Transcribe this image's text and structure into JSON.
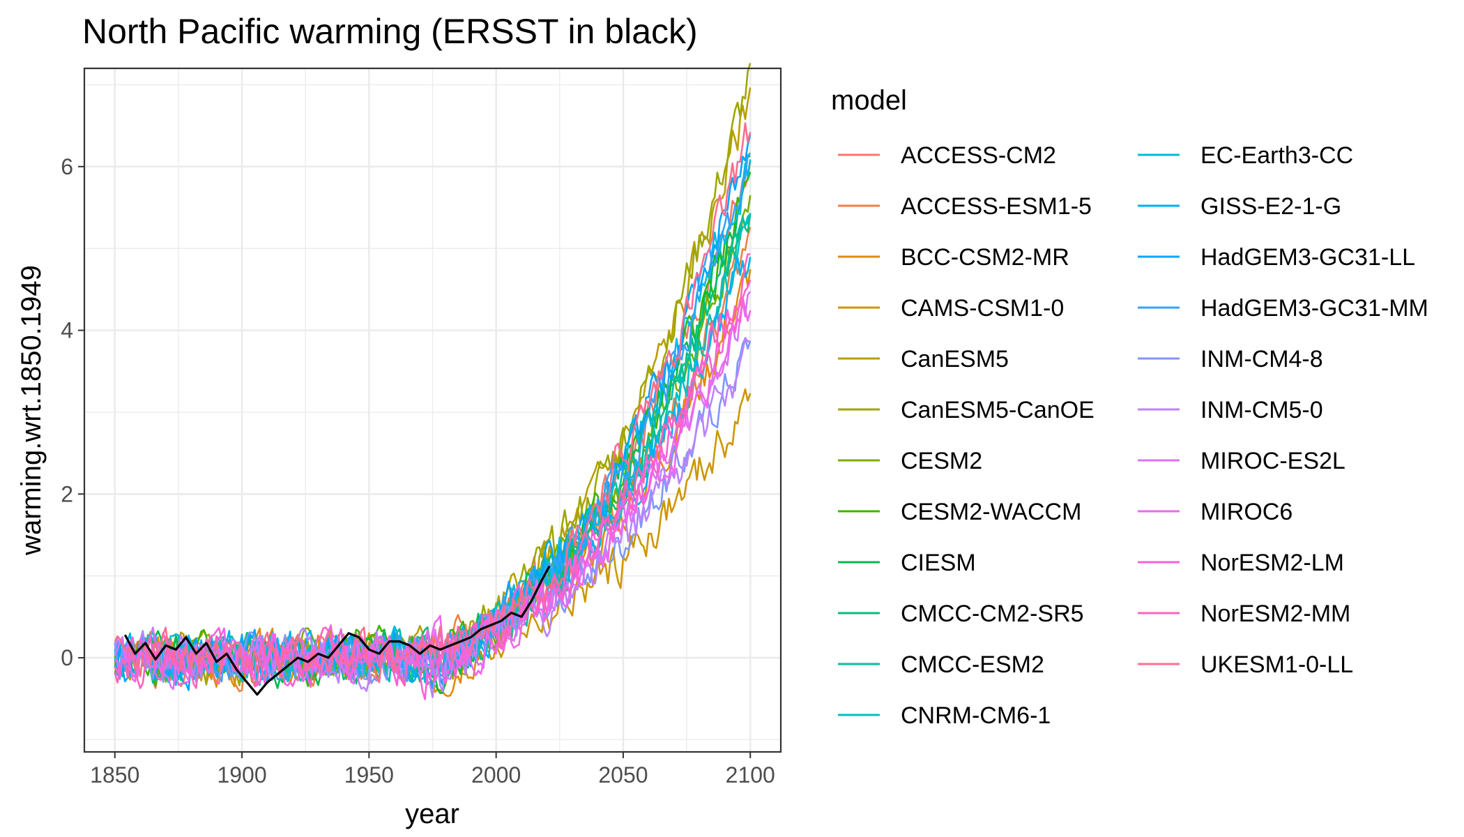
{
  "chart_data": {
    "type": "line",
    "title": "North Pacific warming (ERSST in black)",
    "xlabel": "year",
    "ylabel": "warming.wrt.1850.1949",
    "xlim": [
      1838,
      2112
    ],
    "ylim": [
      -1.15,
      7.2
    ],
    "x_ticks": [
      "1850",
      "1900",
      "1950",
      "2000",
      "2050",
      "2100"
    ],
    "y_ticks": [
      "0",
      "2",
      "4",
      "6"
    ],
    "grid": true,
    "legend_position": "right",
    "legend_title": "model",
    "observed": {
      "color": "#000000",
      "points": [
        [
          1854,
          0.28
        ],
        [
          1858,
          0.05
        ],
        [
          1862,
          0.18
        ],
        [
          1866,
          -0.02
        ],
        [
          1870,
          0.15
        ],
        [
          1874,
          0.1
        ],
        [
          1878,
          0.25
        ],
        [
          1882,
          0.05
        ],
        [
          1886,
          0.18
        ],
        [
          1890,
          -0.05
        ],
        [
          1894,
          0.05
        ],
        [
          1898,
          -0.15
        ],
        [
          1902,
          -0.3
        ],
        [
          1906,
          -0.45
        ],
        [
          1910,
          -0.3
        ],
        [
          1914,
          -0.2
        ],
        [
          1918,
          -0.1
        ],
        [
          1922,
          0.0
        ],
        [
          1926,
          -0.05
        ],
        [
          1930,
          0.05
        ],
        [
          1934,
          0.0
        ],
        [
          1938,
          0.15
        ],
        [
          1942,
          0.3
        ],
        [
          1946,
          0.25
        ],
        [
          1950,
          0.1
        ],
        [
          1954,
          0.05
        ],
        [
          1958,
          0.2
        ],
        [
          1962,
          0.2
        ],
        [
          1966,
          0.15
        ],
        [
          1970,
          0.05
        ],
        [
          1974,
          0.15
        ],
        [
          1978,
          0.1
        ],
        [
          1982,
          0.15
        ],
        [
          1986,
          0.2
        ],
        [
          1990,
          0.25
        ],
        [
          1994,
          0.35
        ],
        [
          1998,
          0.4
        ],
        [
          2002,
          0.45
        ],
        [
          2006,
          0.55
        ],
        [
          2010,
          0.5
        ],
        [
          2014,
          0.7
        ],
        [
          2018,
          0.95
        ],
        [
          2021,
          1.12
        ]
      ]
    },
    "series": [
      {
        "name": "ACCESS-CM2",
        "color": "#F8766D",
        "scale": 1.12,
        "seed": 1
      },
      {
        "name": "ACCESS-ESM1-5",
        "color": "#EE8043",
        "scale": 0.95,
        "seed": 2
      },
      {
        "name": "BCC-CSM2-MR",
        "color": "#E08B00",
        "scale": 0.88,
        "seed": 3
      },
      {
        "name": "CAMS-CSM1-0",
        "color": "#CD9600",
        "scale": 0.58,
        "seed": 4
      },
      {
        "name": "CanESM5",
        "color": "#B79F00",
        "scale": 1.28,
        "seed": 5
      },
      {
        "name": "CanESM5-CanOE",
        "color": "#9EA700",
        "scale": 1.32,
        "seed": 6
      },
      {
        "name": "CESM2",
        "color": "#7CAE00",
        "scale": 1.05,
        "seed": 7
      },
      {
        "name": "CESM2-WACCM",
        "color": "#39B600",
        "scale": 1.08,
        "seed": 8
      },
      {
        "name": "CIESM",
        "color": "#00BB4E",
        "scale": 1.1,
        "seed": 9
      },
      {
        "name": "CMCC-CM2-SR5",
        "color": "#00BF7D",
        "scale": 1.02,
        "seed": 10
      },
      {
        "name": "CMCC-ESM2",
        "color": "#00C0A3",
        "scale": 1.0,
        "seed": 11
      },
      {
        "name": "CNRM-CM6-1",
        "color": "#00BFC4",
        "scale": 0.98,
        "seed": 12
      },
      {
        "name": "EC-Earth3-CC",
        "color": "#00BAE0",
        "scale": 1.14,
        "seed": 13
      },
      {
        "name": "GISS-E2-1-G",
        "color": "#00B0F6",
        "scale": 0.92,
        "seed": 14
      },
      {
        "name": "HadGEM3-GC31-LL",
        "color": "#00A5FF",
        "scale": 1.18,
        "seed": 15
      },
      {
        "name": "HadGEM3-GC31-MM",
        "color": "#35A2FF",
        "scale": 1.12,
        "seed": 16
      },
      {
        "name": "INM-CM4-8",
        "color": "#7F96FF",
        "scale": 0.72,
        "seed": 17
      },
      {
        "name": "INM-CM5-0",
        "color": "#B983FF",
        "scale": 0.7,
        "seed": 18
      },
      {
        "name": "MIROC-ES2L",
        "color": "#DC71FA",
        "scale": 0.82,
        "seed": 19
      },
      {
        "name": "MIROC6",
        "color": "#EF67EB",
        "scale": 0.8,
        "seed": 20
      },
      {
        "name": "NorESM2-LM",
        "color": "#FB61D7",
        "scale": 0.86,
        "seed": 21
      },
      {
        "name": "NorESM2-MM",
        "color": "#FF62BC",
        "scale": 0.9,
        "seed": 22
      },
      {
        "name": "UKESM1-0-LL",
        "color": "#FF6C91",
        "scale": 1.2,
        "seed": 23
      }
    ]
  }
}
